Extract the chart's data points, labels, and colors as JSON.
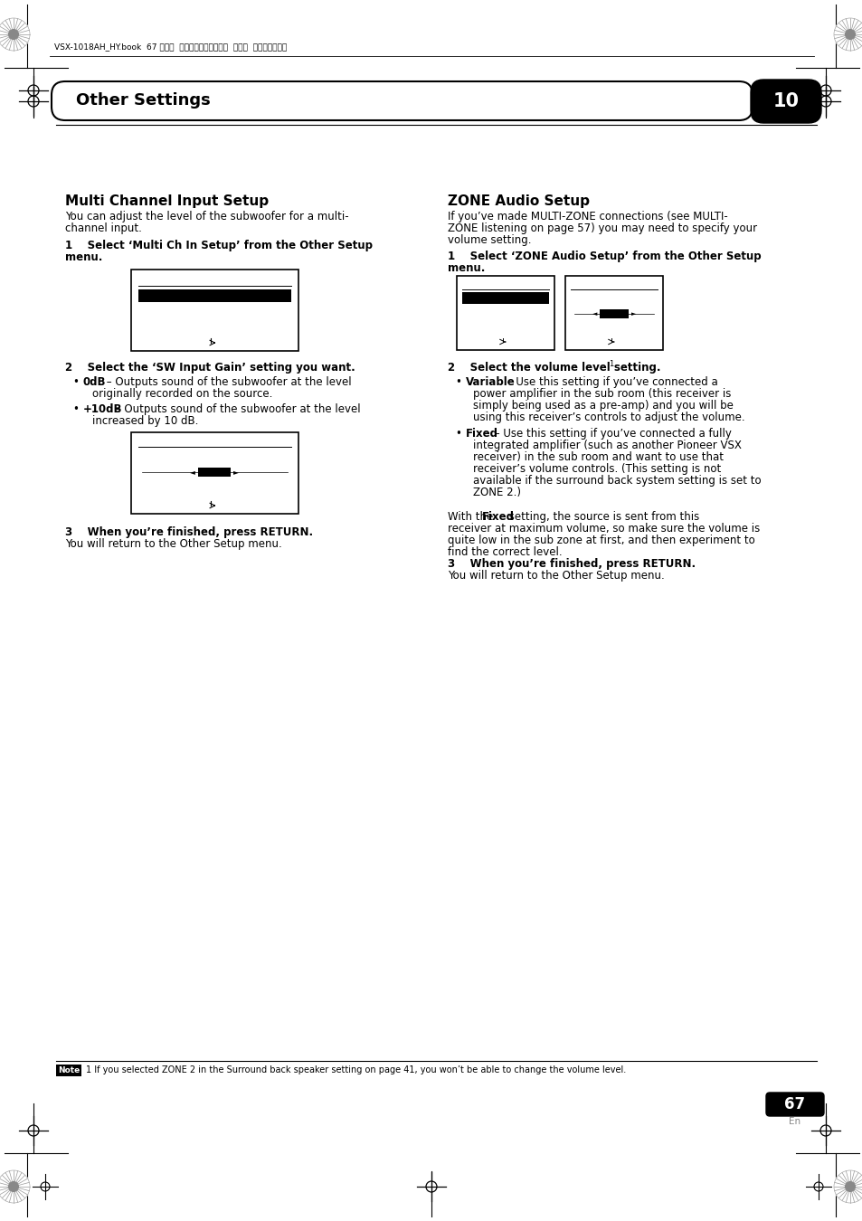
{
  "page_bg": "#ffffff",
  "header_text": "VSX-1018AH_HY.book  67 ページ  ２００８年４月１６日  水曜日  午後７時２５分",
  "section_title": "Other Settings",
  "chapter_num": "10",
  "left_title": "Multi Channel Input Setup",
  "left_intro1": "You can adjust the level of the subwoofer for a multi-",
  "left_intro2": "channel input.",
  "left_step1a": "1    Select ‘Multi Ch In Setup’ from the Other Setup",
  "left_step1b": "menu.",
  "left_step2": "2    Select the ‘SW Input Gain’ setting you want.",
  "left_b1_bold": "0dB",
  "left_b1_rest": " – Outputs sound of the subwoofer at the level",
  "left_b1_rest2": "originally recorded on the source.",
  "left_b2_bold": "+10dB",
  "left_b2_rest": " – Outputs sound of the subwoofer at the level",
  "left_b2_rest2": "increased by 10 dB.",
  "left_step3a": "3    When you’re finished, press RETURN.",
  "left_step3b": "You will return to the Other Setup menu.",
  "right_title": "ZONE Audio Setup",
  "right_intro1": "If you’ve made MULTI-ZONE connections (see MULTI-",
  "right_intro2": "ZONE listening on page 57) you may need to specify your",
  "right_intro3": "volume setting.",
  "right_step1a": "1    Select ‘ZONE Audio Setup’ from the Other Setup",
  "right_step1b": "menu.",
  "right_step2": "2    Select the volume level setting.",
  "right_step2_sup": "1",
  "right_b1_bold": "Variable",
  "right_b1_rest": " – Use this setting if you’ve connected a",
  "right_b1_rest2": "power amplifier in the sub room (this receiver is",
  "right_b1_rest3": "simply being used as a pre-amp) and you will be",
  "right_b1_rest4": "using this receiver’s controls to adjust the volume.",
  "right_b2_bold": "Fixed",
  "right_b2_rest": " – Use this setting if you’ve connected a fully",
  "right_b2_rest2": "integrated amplifier (such as another Pioneer VSX",
  "right_b2_rest3": "receiver) in the sub room and want to use that",
  "right_b2_rest4": "receiver’s volume controls. (This setting is not",
  "right_b2_rest5": "available if the surround back system setting is set to",
  "right_b2_rest6": "ZONE 2.)",
  "right_para1": "With the ",
  "right_para1_bold": "Fixed",
  "right_para1_rest": " setting, the source is sent from this",
  "right_para2": "receiver at maximum volume, so make sure the volume is",
  "right_para3": "quite low in the sub zone at first, and then experiment to",
  "right_para4": "find the correct level.",
  "right_step3a": "3    When you’re finished, press RETURN.",
  "right_step3b": "You will return to the Other Setup menu.",
  "note_label": "Note",
  "note_line": "1 If you selected ZONE 2 in the Surround back speaker setting on page 41, you won’t be able to change the volume level.",
  "page_num": "67",
  "page_lang": "En"
}
